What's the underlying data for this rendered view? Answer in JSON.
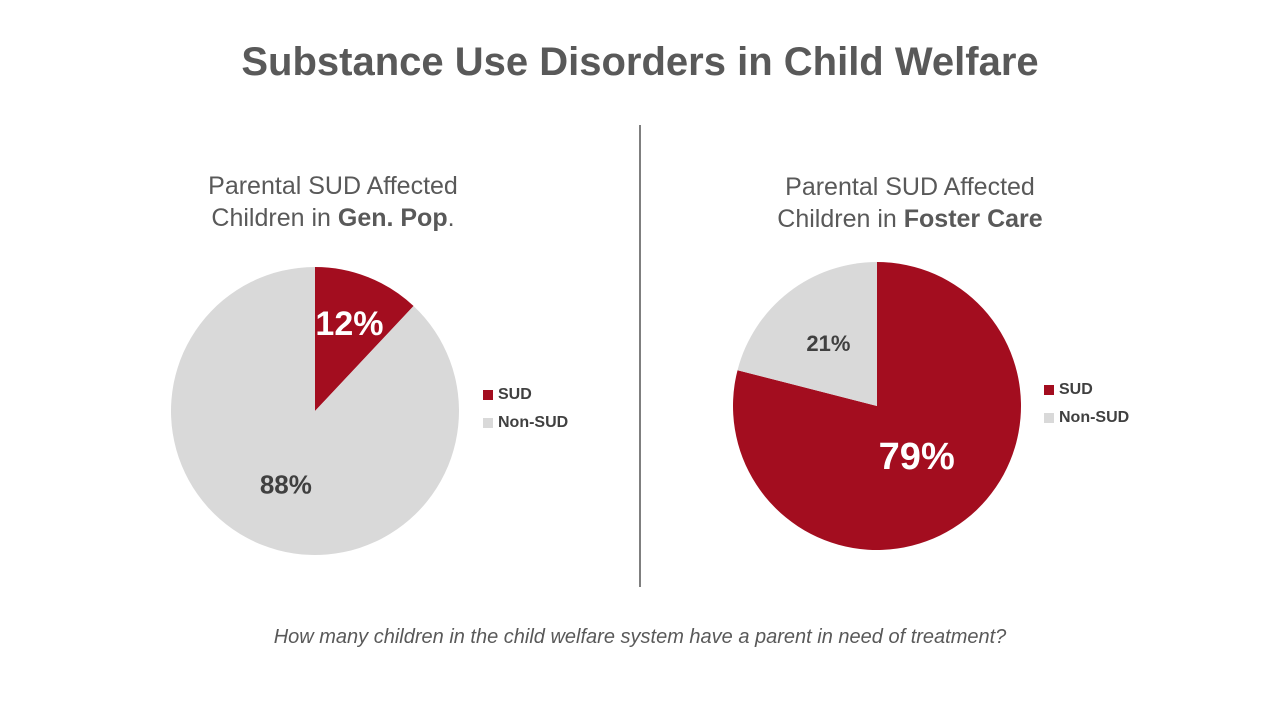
{
  "slide": {
    "title": "Substance Use Disorders in Child Welfare",
    "question": "How many children in the child welfare system have a parent in need of treatment?"
  },
  "colors": {
    "sud": "#a30d1f",
    "non_sud": "#d9d9d9",
    "label_dark": "#404040",
    "label_light": "#ffffff"
  },
  "chart_data": [
    {
      "type": "pie",
      "title_line1": "Parental SUD Affected",
      "title_line2_prefix": "Children in ",
      "title_line2_bold": "Gen. Pop",
      "title_line2_suffix": ".",
      "categories": [
        "SUD",
        "Non-SUD"
      ],
      "values": [
        12,
        88
      ],
      "data_labels": [
        "12%",
        "88%"
      ],
      "legend": [
        "SUD",
        "Non-SUD"
      ],
      "legend_position": "right"
    },
    {
      "type": "pie",
      "title_line1": "Parental SUD Affected",
      "title_line2_prefix": "Children in ",
      "title_line2_bold": "Foster Care",
      "title_line2_suffix": "",
      "categories": [
        "SUD",
        "Non-SUD"
      ],
      "values": [
        79,
        21
      ],
      "data_labels": [
        "79%",
        "21%"
      ],
      "legend": [
        "SUD",
        "Non-SUD"
      ],
      "legend_position": "right"
    }
  ]
}
